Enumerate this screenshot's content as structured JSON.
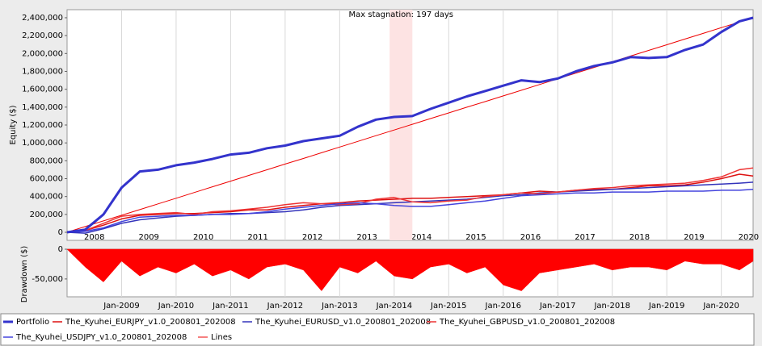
{
  "chart_data": [
    {
      "type": "line",
      "y_label": "Equity ($)",
      "x": [
        "2008-01",
        "2008-05",
        "2008-09",
        "2009-01",
        "2009-05",
        "2009-09",
        "2010-01",
        "2010-05",
        "2010-09",
        "2011-01",
        "2011-05",
        "2011-09",
        "2012-01",
        "2012-05",
        "2012-09",
        "2013-01",
        "2013-05",
        "2013-09",
        "2014-01",
        "2014-05",
        "2014-09",
        "2015-01",
        "2015-05",
        "2015-09",
        "2016-01",
        "2016-05",
        "2016-09",
        "2017-01",
        "2017-05",
        "2017-09",
        "2018-01",
        "2018-05",
        "2018-09",
        "2019-01",
        "2019-05",
        "2019-09",
        "2020-01",
        "2020-05",
        "2020-08"
      ],
      "xlim": [
        "2008-01",
        "2020-08"
      ],
      "xticks": [
        "2008",
        "2009",
        "2010",
        "2011",
        "2012",
        "2013",
        "2014",
        "2015",
        "2016",
        "2017",
        "2018",
        "2019",
        "2020"
      ],
      "ylim": [
        -90000,
        2490000
      ],
      "yticks": [
        0,
        {
          "value": 200000,
          "label": "200,000"
        },
        {
          "value": 400000,
          "label": "400,000"
        },
        {
          "value": 600000,
          "label": "600,000"
        },
        {
          "value": 800000,
          "label": "800,000"
        },
        {
          "value": 1000000,
          "label": "1,000,000"
        },
        {
          "value": 1200000,
          "label": "1,200,000"
        },
        {
          "value": 1400000,
          "label": "1,400,000"
        },
        {
          "value": 1600000,
          "label": "1,600,000"
        },
        {
          "value": 1800000,
          "label": "1,800,000"
        },
        {
          "value": 2000000,
          "label": "2,000,000"
        },
        {
          "value": 2200000,
          "label": "2,200,000"
        },
        {
          "value": 2400000,
          "label": "2,400,000"
        }
      ],
      "grid": true,
      "legend": "bottom",
      "stagnation": {
        "label": "Max stagnation: 197 days",
        "x": [
          "2013-12",
          "2014-05"
        ],
        "color": "#fde3e3"
      },
      "series": [
        {
          "name": "Portfolio",
          "color": "#3333cc",
          "width": 3,
          "values": [
            0,
            30000,
            200000,
            500000,
            680000,
            700000,
            750000,
            780000,
            820000,
            870000,
            890000,
            940000,
            970000,
            1020000,
            1050000,
            1080000,
            1180000,
            1260000,
            1290000,
            1300000,
            1380000,
            1450000,
            1520000,
            1580000,
            1640000,
            1700000,
            1680000,
            1720000,
            1800000,
            1860000,
            1900000,
            1960000,
            1950000,
            1960000,
            2040000,
            2100000,
            2240000,
            2360000,
            2400000
          ]
        },
        {
          "name": "The_Kyuhei_EURJPY_v1.0_200801_202008",
          "color": "#dd1111",
          "width": 1.5,
          "values": [
            0,
            20000,
            80000,
            150000,
            190000,
            200000,
            210000,
            210000,
            220000,
            230000,
            250000,
            250000,
            280000,
            300000,
            320000,
            330000,
            350000,
            360000,
            370000,
            380000,
            380000,
            390000,
            400000,
            410000,
            420000,
            440000,
            460000,
            450000,
            470000,
            480000,
            480000,
            500000,
            520000,
            520000,
            530000,
            560000,
            600000,
            650000,
            630000
          ]
        },
        {
          "name": "The_Kyuhei_EURUSD_v1.0_200801_202008",
          "color": "#3333bb",
          "width": 1.5,
          "values": [
            0,
            -10000,
            40000,
            100000,
            140000,
            160000,
            180000,
            190000,
            200000,
            210000,
            210000,
            220000,
            230000,
            250000,
            280000,
            300000,
            310000,
            320000,
            330000,
            340000,
            350000,
            360000,
            370000,
            390000,
            410000,
            420000,
            440000,
            450000,
            460000,
            470000,
            480000,
            490000,
            500000,
            510000,
            520000,
            530000,
            540000,
            550000,
            560000
          ]
        },
        {
          "name": "The_Kyuhei_GBPUSD_v1.0_200801_202008",
          "color": "#ee3333",
          "width": 1.5,
          "values": [
            0,
            20000,
            100000,
            180000,
            200000,
            210000,
            220000,
            200000,
            230000,
            240000,
            260000,
            280000,
            310000,
            330000,
            320000,
            310000,
            320000,
            370000,
            390000,
            340000,
            330000,
            350000,
            360000,
            400000,
            420000,
            440000,
            430000,
            450000,
            470000,
            490000,
            500000,
            520000,
            530000,
            540000,
            550000,
            580000,
            620000,
            700000,
            720000
          ]
        },
        {
          "name": "The_Kyuhei_USDJPY_v1.0_200801_202008",
          "color": "#4444dd",
          "width": 1.5,
          "values": [
            0,
            10000,
            50000,
            120000,
            170000,
            180000,
            190000,
            190000,
            200000,
            200000,
            210000,
            230000,
            260000,
            280000,
            300000,
            320000,
            330000,
            320000,
            300000,
            290000,
            290000,
            310000,
            330000,
            350000,
            380000,
            410000,
            420000,
            430000,
            440000,
            440000,
            450000,
            450000,
            450000,
            460000,
            460000,
            460000,
            470000,
            470000,
            480000
          ]
        },
        {
          "name": "Lines",
          "color": "#ee0000",
          "width": 1,
          "values": [
            0,
            64000,
            127000,
            191000,
            254000,
            318000,
            381000,
            445000,
            509000,
            572000,
            636000,
            699000,
            763000,
            826000,
            890000,
            954000,
            1017000,
            1081000,
            1144000,
            1208000,
            1272000,
            1335000,
            1399000,
            1462000,
            1526000,
            1589000,
            1653000,
            1717000,
            1780000,
            1844000,
            1907000,
            1971000,
            2034000,
            2098000,
            2162000,
            2225000,
            2289000,
            2352000,
            2400000
          ]
        }
      ]
    },
    {
      "type": "area",
      "y_label": "Drawdown ($)",
      "x": [
        "2008-01",
        "2008-05",
        "2008-09",
        "2009-01",
        "2009-05",
        "2009-09",
        "2010-01",
        "2010-05",
        "2010-09",
        "2011-01",
        "2011-05",
        "2011-09",
        "2012-01",
        "2012-05",
        "2012-09",
        "2013-01",
        "2013-05",
        "2013-09",
        "2014-01",
        "2014-05",
        "2014-09",
        "2015-01",
        "2015-05",
        "2015-09",
        "2016-01",
        "2016-05",
        "2016-09",
        "2017-01",
        "2017-05",
        "2017-09",
        "2018-01",
        "2018-05",
        "2018-09",
        "2019-01",
        "2019-05",
        "2019-09",
        "2020-01",
        "2020-05",
        "2020-08"
      ],
      "xlim": [
        "2008-01",
        "2020-08"
      ],
      "xticks": [
        "Jan-2009",
        "Jan-2010",
        "Jan-2011",
        "Jan-2012",
        "Jan-2013",
        "Jan-2014",
        "Jan-2015",
        "Jan-2016",
        "Jan-2017",
        "Jan-2018",
        "Jan-2019",
        "Jan-2020"
      ],
      "ylim": [
        -80000,
        0
      ],
      "yticks": [
        0,
        {
          "value": -50000,
          "label": "-50,000"
        }
      ],
      "grid": true,
      "color": "#ff0000",
      "values": [
        0,
        -30000,
        -55000,
        -20000,
        -45000,
        -30000,
        -40000,
        -25000,
        -45000,
        -35000,
        -50000,
        -30000,
        -25000,
        -35000,
        -70000,
        -30000,
        -40000,
        -20000,
        -45000,
        -50000,
        -30000,
        -25000,
        -40000,
        -30000,
        -60000,
        -70000,
        -40000,
        -35000,
        -30000,
        -25000,
        -35000,
        -30000,
        -30000,
        -35000,
        -20000,
        -25000,
        -25000,
        -35000,
        -20000
      ]
    }
  ]
}
